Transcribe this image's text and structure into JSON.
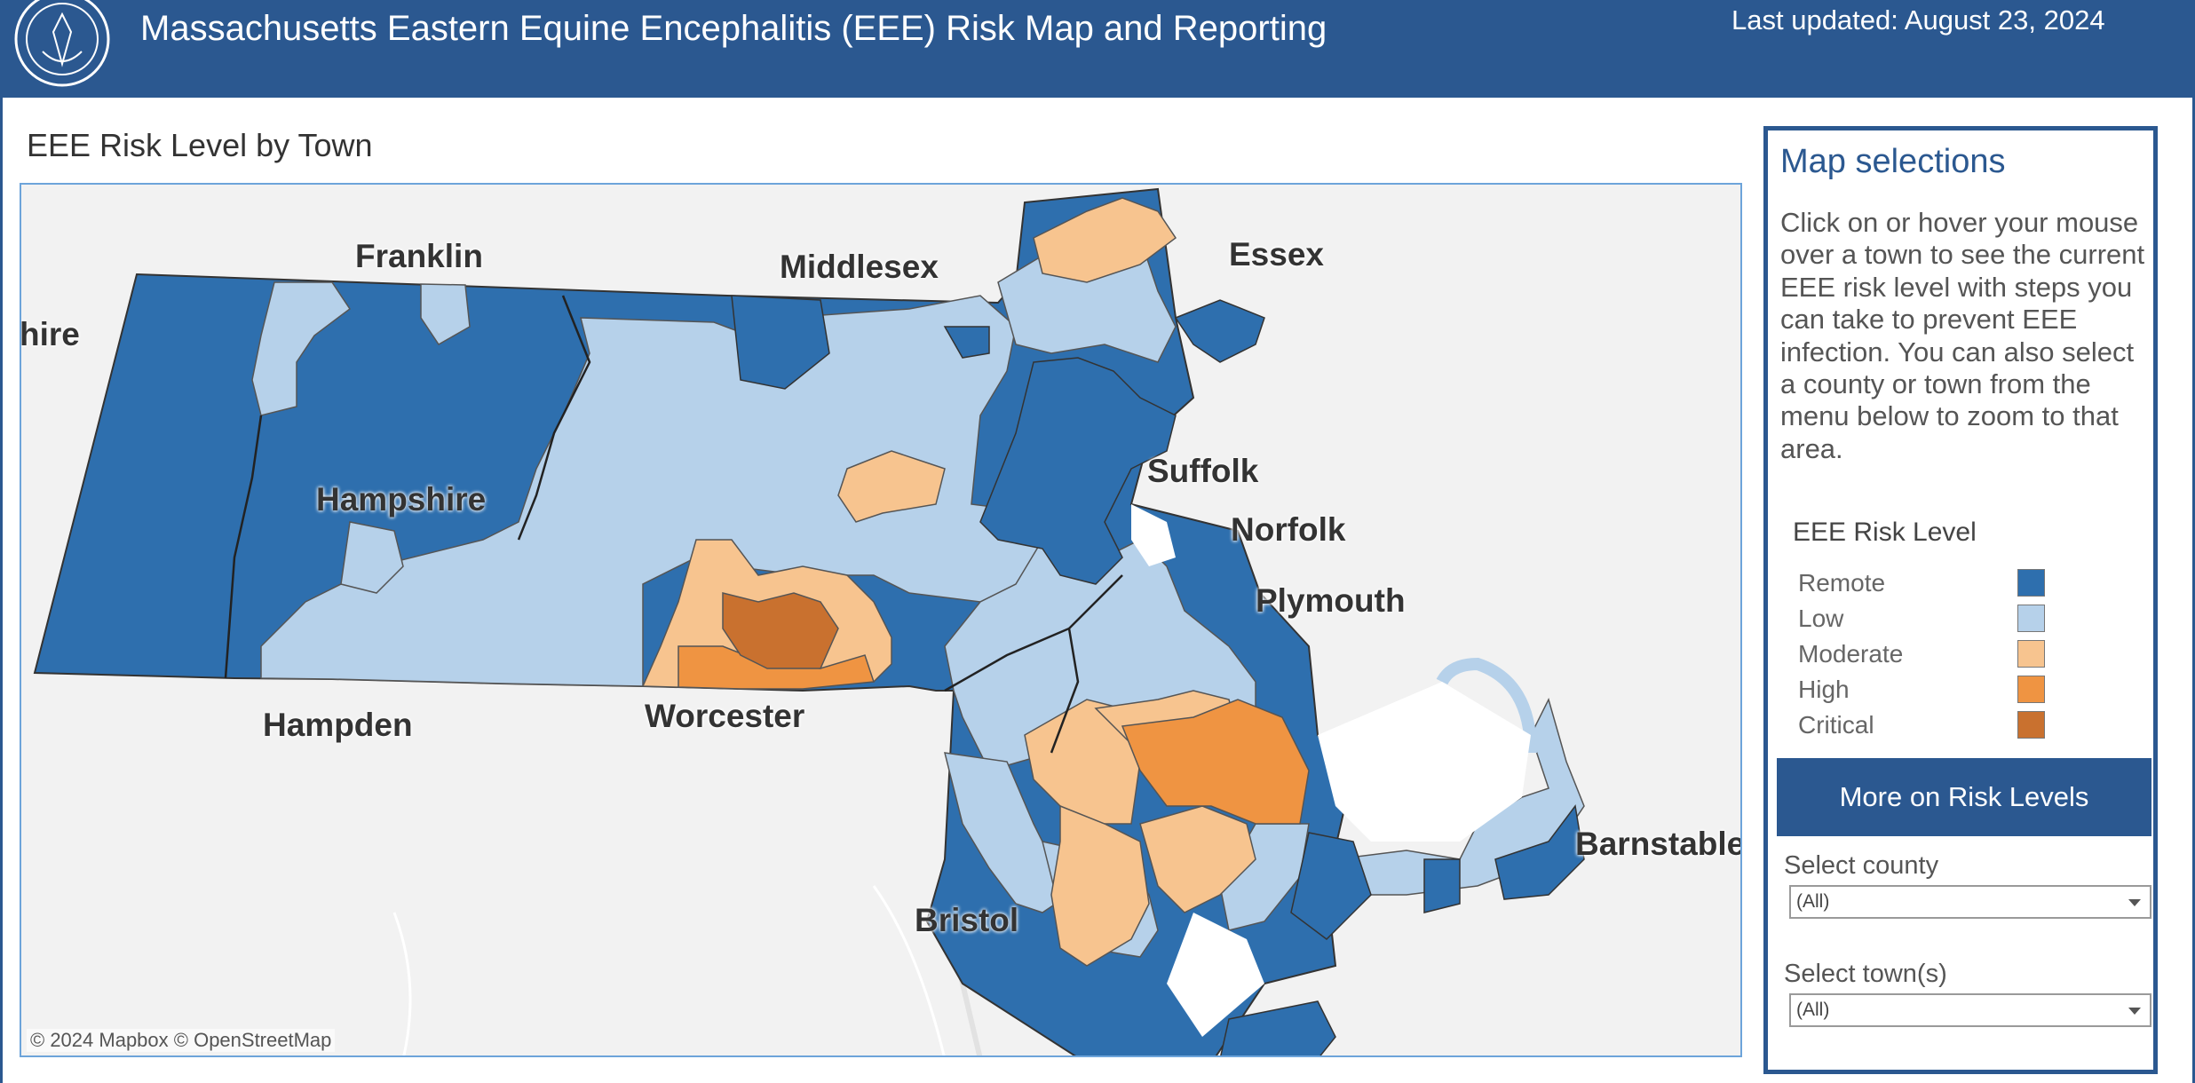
{
  "header": {
    "title": "Massachusetts Eastern Equine Encephalitis (EEE) Risk Map and Reporting",
    "last_updated": "Last updated: August 23, 2024",
    "seal_icon": "department-of-public-health-seal-icon"
  },
  "section_title": "EEE Risk Level by Town",
  "map": {
    "county_labels": {
      "berkshire": "hire",
      "franklin": "Franklin",
      "middlesex": "Middlesex",
      "essex": "Essex",
      "hampshire": "Hampshire",
      "suffolk": "Suffolk",
      "norfolk": "Norfolk",
      "plymouth": "Plymouth",
      "hampden": "Hampden",
      "worcester": "Worcester",
      "bristol": "Bristol",
      "barnstable": "Barnstable"
    },
    "attribution": "© 2024 Mapbox  © OpenStreetMap",
    "colors": {
      "remote": "#2e6fae",
      "low": "#b6d1ea",
      "moderate": "#f7c48f",
      "high": "#ef9442",
      "critical": "#c9712f",
      "land_outside": "#f2f2f2",
      "water": "#ffffff"
    }
  },
  "panel": {
    "title": "Map selections",
    "description": "Click on or hover your mouse over a town to see the current EEE risk level with steps you can take to prevent EEE infection. You can also select a county or town from the menu below to zoom to that area.",
    "legend_title": "EEE Risk Level",
    "legend": [
      {
        "label": "Remote",
        "color": "#2e6fae"
      },
      {
        "label": "Low",
        "color": "#b6d1ea"
      },
      {
        "label": "Moderate",
        "color": "#f7c48f"
      },
      {
        "label": "High",
        "color": "#ef9442"
      },
      {
        "label": "Critical",
        "color": "#c9712f"
      }
    ],
    "more_button": "More on Risk Levels",
    "select_county_label": "Select county",
    "select_county_value": "(All)",
    "select_town_label": "Select town(s)",
    "select_town_value": "(All)"
  }
}
